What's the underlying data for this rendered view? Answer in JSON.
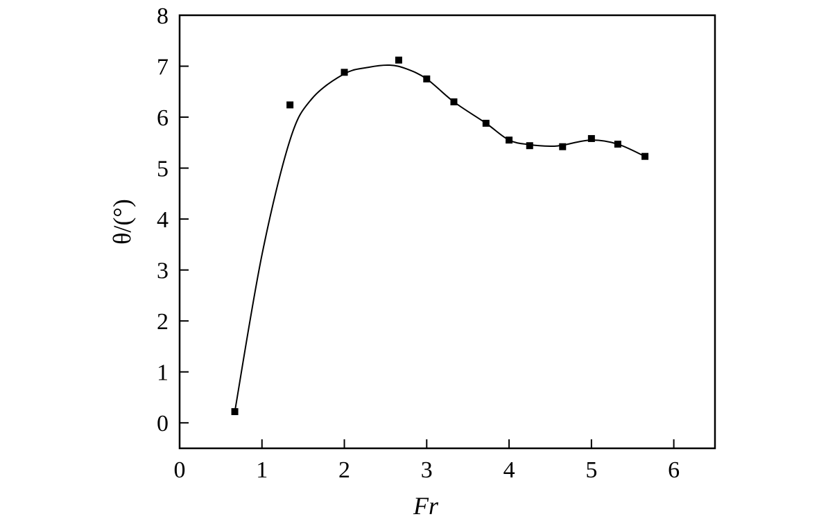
{
  "chart_data": {
    "type": "scatter",
    "title": "",
    "xlabel": "Fr",
    "ylabel": "θ/(°)",
    "xlim": [
      0,
      6.5
    ],
    "ylim": [
      -0.5,
      8
    ],
    "x_ticks": [
      "0",
      "1",
      "2",
      "3",
      "4",
      "5",
      "6"
    ],
    "y_ticks": [
      "0",
      "1",
      "2",
      "3",
      "4",
      "5",
      "6",
      "7",
      "8"
    ],
    "grid": false,
    "legend": "none",
    "series": [
      {
        "marker": "square",
        "color": "#000000",
        "x": [
          0.67,
          1.34,
          2.0,
          2.66,
          3.0,
          3.33,
          3.72,
          4.0,
          4.25,
          4.65,
          5.0,
          5.32,
          5.65
        ],
        "y": [
          0.22,
          6.24,
          6.88,
          7.12,
          6.75,
          6.3,
          5.88,
          5.55,
          5.44,
          5.42,
          5.58,
          5.47,
          5.23
        ]
      }
    ],
    "fit_curve": {
      "style": "smooth-line",
      "color": "#000000",
      "x": [
        0.67,
        1.0,
        1.34,
        1.6,
        2.0,
        2.3,
        2.55,
        2.75,
        3.0,
        3.33,
        3.72,
        4.0,
        4.25,
        4.5,
        4.65,
        5.0,
        5.32,
        5.65
      ],
      "y": [
        0.22,
        3.3,
        5.55,
        6.35,
        6.85,
        6.98,
        7.02,
        6.95,
        6.75,
        6.3,
        5.88,
        5.55,
        5.46,
        5.43,
        5.45,
        5.55,
        5.47,
        5.23
      ]
    }
  }
}
